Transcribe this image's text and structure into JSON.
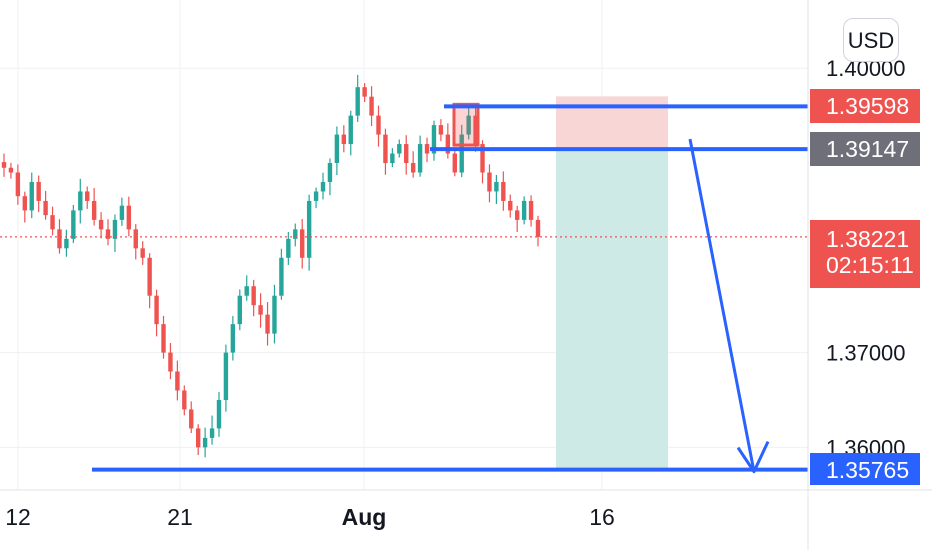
{
  "chart_data": {
    "type": "candlestick",
    "currency_label": "USD",
    "x_ticks": [
      "12",
      "21",
      "Aug",
      "16"
    ],
    "y_ticks": [
      "1.40000",
      "1.37000",
      "1.36000"
    ],
    "ylim": [
      1.3555,
      1.4072
    ],
    "grid": true,
    "price_tags": {
      "upper_level": "1.39598",
      "entry_level": "1.39147",
      "last_price": "1.38221",
      "countdown": "02:15:11",
      "target_level": "1.35765"
    },
    "levels": {
      "upper": 1.39598,
      "entry": 1.39147,
      "last": 1.38221,
      "target": 1.35765
    },
    "trend_closes": [
      1.3895,
      1.389,
      1.3865,
      1.385,
      1.388,
      1.386,
      1.3845,
      1.383,
      1.381,
      1.382,
      1.385,
      1.387,
      1.386,
      1.384,
      1.383,
      1.382,
      1.384,
      1.3855,
      1.383,
      1.381,
      1.38,
      1.376,
      1.373,
      1.37,
      1.368,
      1.366,
      1.364,
      1.362,
      1.36,
      1.361,
      1.362,
      1.365,
      1.37,
      1.373,
      1.376,
      1.377,
      1.375,
      1.374,
      1.372,
      1.376,
      1.38,
      1.382,
      1.383,
      1.38,
      1.386,
      1.387,
      1.388,
      1.39,
      1.393,
      1.392,
      1.395,
      1.398,
      1.397,
      1.395,
      1.393,
      1.39,
      1.391,
      1.392,
      1.39,
      1.389,
      1.392,
      1.391,
      1.394,
      1.393,
      1.391,
      1.389,
      1.393,
      1.395,
      1.392,
      1.389,
      1.387,
      1.388,
      1.386,
      1.385,
      1.384,
      1.386,
      1.384,
      1.3822
    ],
    "colors": {
      "up": "#26a69a",
      "down": "#ef5350",
      "level_line": "#2962ff",
      "tag_red": "#ef5350",
      "tag_gray": "#6f6f79",
      "tag_blue": "#2962ff",
      "stop_zone": "#f8cfcf",
      "profit_zone": "#cbe9e5",
      "grid": "#eef0f3",
      "axis_text": "#131722"
    }
  }
}
